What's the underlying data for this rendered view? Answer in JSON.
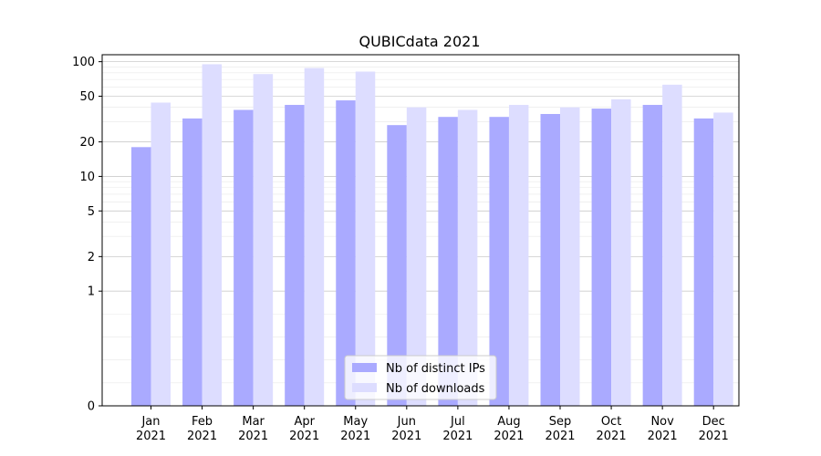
{
  "chart_data": {
    "type": "bar",
    "title": "QUBICdata 2021",
    "xlabel": "",
    "ylabel": "",
    "y_scale": "symlog",
    "ylim": [
      0,
      115
    ],
    "yticks": [
      0,
      1,
      2,
      5,
      10,
      20,
      50,
      100
    ],
    "categories": [
      [
        "Jan",
        "2021"
      ],
      [
        "Feb",
        "2021"
      ],
      [
        "Mar",
        "2021"
      ],
      [
        "Apr",
        "2021"
      ],
      [
        "May",
        "2021"
      ],
      [
        "Jun",
        "2021"
      ],
      [
        "Jul",
        "2021"
      ],
      [
        "Aug",
        "2021"
      ],
      [
        "Sep",
        "2021"
      ],
      [
        "Oct",
        "2021"
      ],
      [
        "Nov",
        "2021"
      ],
      [
        "Dec",
        "2021"
      ]
    ],
    "series": [
      {
        "name": "Nb of distinct IPs",
        "color": "#aaaaff",
        "values": [
          18,
          32,
          38,
          42,
          46,
          28,
          33,
          33,
          35,
          39,
          42,
          32
        ]
      },
      {
        "name": "Nb of downloads",
        "color": "#ddddff",
        "values": [
          44,
          95,
          78,
          88,
          82,
          40,
          38,
          42,
          40,
          47,
          63,
          36
        ]
      }
    ],
    "grid": true,
    "legend_position": "bottom-center"
  }
}
